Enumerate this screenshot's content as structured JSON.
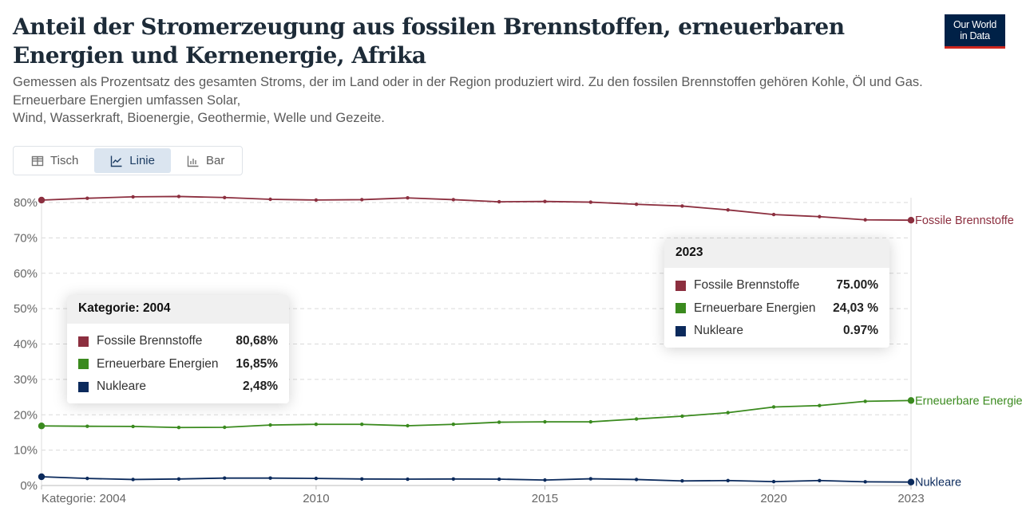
{
  "header": {
    "title": "Anteil der Stromerzeugung aus fossilen Brennstoffen, erneuerbaren Energien und Kernenergie, Afrika",
    "subtitle_lines": [
      "Gemessen als Prozentsatz des gesamten Stroms, der im Land oder in der Region produziert wird. Zu den fossilen Brennstoffen gehören Kohle, Öl und Gas.",
      "Erneuerbare Energien umfassen Solar,",
      "Wind, Wasserkraft, Bioenergie, Geothermie, Welle und Gezeite."
    ],
    "logo_line1": "Our World",
    "logo_line2": "in Data"
  },
  "tabs": [
    {
      "label": "Tisch",
      "icon": "table-icon",
      "active": false
    },
    {
      "label": "Linie",
      "icon": "line-chart-icon",
      "active": true
    },
    {
      "label": "Bar",
      "icon": "bar-chart-icon",
      "active": false
    }
  ],
  "tooltips": {
    "left": {
      "title": "Kategorie: 2004",
      "rows": [
        {
          "name": "Fossile Brennstoffe",
          "value": "80,68%",
          "color": "#8c2f3f"
        },
        {
          "name": "Erneuerbare Energien",
          "value": "16,85%",
          "color": "#3a8a1e"
        },
        {
          "name": "Nukleare",
          "value": "2,48%",
          "color": "#0b2a5c"
        }
      ]
    },
    "right": {
      "title": "2023",
      "rows": [
        {
          "name": "Fossile Brennstoffe",
          "value": "75.00%",
          "color": "#8c2f3f"
        },
        {
          "name": "Erneuerbare Energien",
          "value": "24,03 %",
          "color": "#3a8a1e"
        },
        {
          "name": "Nukleare",
          "value": "0.97%",
          "color": "#0b2a5c"
        }
      ]
    }
  },
  "chart_data": {
    "type": "line",
    "title": "Anteil der Stromerzeugung aus fossilen Brennstoffen, erneuerbaren Energien und Kernenergie, Afrika",
    "xlabel": "",
    "ylabel": "",
    "x": [
      2004,
      2005,
      2006,
      2007,
      2008,
      2009,
      2010,
      2011,
      2012,
      2013,
      2014,
      2015,
      2016,
      2017,
      2018,
      2019,
      2020,
      2021,
      2022,
      2023
    ],
    "xlim": [
      2004,
      2023
    ],
    "ylim": [
      0,
      80
    ],
    "yticks": [
      0,
      10,
      20,
      30,
      40,
      50,
      60,
      70,
      80
    ],
    "ytick_labels": [
      "0%",
      "10%",
      "20%",
      "30%",
      "40%",
      "50%",
      "60%",
      "70%",
      "80%"
    ],
    "xticks": [
      {
        "value": 2004,
        "label": "Kategorie: 2004"
      },
      {
        "value": 2010,
        "label": "2010"
      },
      {
        "value": 2015,
        "label": "2015"
      },
      {
        "value": 2020,
        "label": "2020"
      },
      {
        "value": 2023,
        "label": "2023"
      }
    ],
    "grid": true,
    "legend": "end-of-line labels (right)",
    "series": [
      {
        "name": "Fossile Brennstoffe",
        "color": "#8c2f3f",
        "values": [
          80.68,
          81.2,
          81.6,
          81.7,
          81.4,
          80.9,
          80.7,
          80.8,
          81.3,
          80.8,
          80.2,
          80.3,
          80.1,
          79.5,
          79.0,
          77.9,
          76.6,
          76.0,
          75.1,
          75.0
        ]
      },
      {
        "name": "Erneuerbare Energien",
        "color": "#3a8a1e",
        "values": [
          16.85,
          16.75,
          16.7,
          16.4,
          16.45,
          17.1,
          17.3,
          17.3,
          16.9,
          17.3,
          17.9,
          18.0,
          18.0,
          18.8,
          19.6,
          20.6,
          22.2,
          22.6,
          23.8,
          24.03
        ]
      },
      {
        "name": "Nukleare",
        "color": "#0b2a5c",
        "values": [
          2.48,
          2.0,
          1.7,
          1.85,
          2.1,
          2.1,
          2.0,
          1.85,
          1.8,
          1.85,
          1.8,
          1.55,
          1.9,
          1.7,
          1.3,
          1.4,
          1.1,
          1.4,
          1.05,
          0.97
        ]
      }
    ]
  }
}
